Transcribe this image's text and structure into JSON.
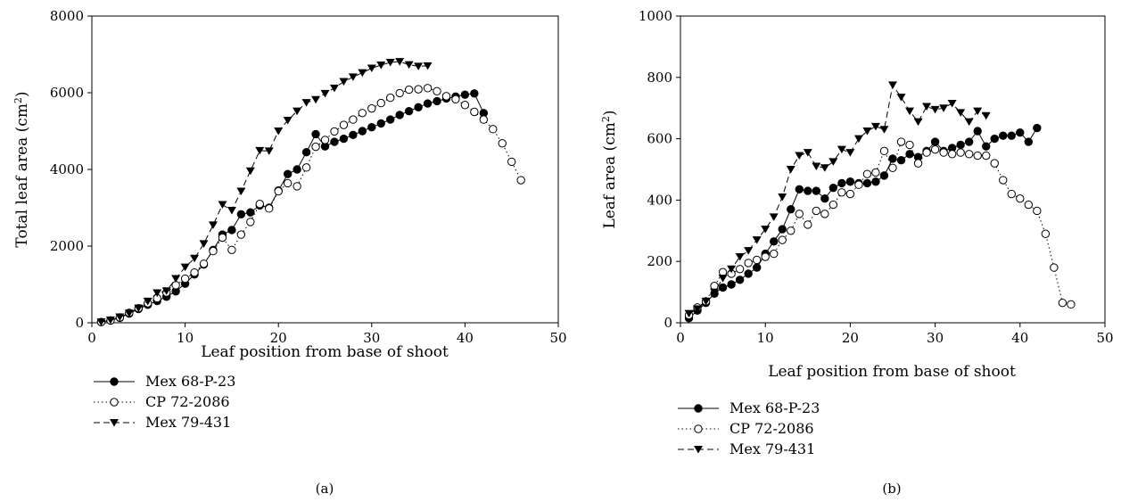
{
  "series_styles": [
    {
      "name": "Mex 68-P-23",
      "marker": "filled-circle",
      "line": "solid"
    },
    {
      "name": "CP 72-2086",
      "marker": "open-circle",
      "line": "dotted"
    },
    {
      "name": "Mex 79-431",
      "marker": "filled-triangle-down",
      "line": "dashed"
    }
  ],
  "colors": {
    "line": "#000000",
    "background": "#ffffff"
  },
  "chart_data": [
    {
      "type": "line",
      "panel_label": "(a)",
      "xlabel": "Leaf position from base of shoot",
      "ylabel": "Total leaf area (cm",
      "ylabel_sup": "2",
      "ylabel_end": ")",
      "xlim": [
        0,
        50
      ],
      "ylim": [
        0,
        8000
      ],
      "xticks": [
        0,
        10,
        20,
        30,
        40,
        50
      ],
      "yticks": [
        0,
        2000,
        4000,
        6000,
        8000
      ],
      "grid": false,
      "legend_position": "below-left",
      "series": [
        {
          "name": "Mex 68-P-23",
          "x": [
            1,
            2,
            3,
            4,
            5,
            6,
            7,
            8,
            9,
            10,
            11,
            12,
            13,
            14,
            15,
            16,
            17,
            18,
            19,
            20,
            21,
            22,
            23,
            24,
            25,
            26,
            27,
            28,
            29,
            30,
            31,
            32,
            33,
            34,
            35,
            36,
            37,
            38,
            39,
            40,
            41,
            42
          ],
          "y": [
            20,
            60,
            130,
            240,
            360,
            470,
            570,
            680,
            820,
            1020,
            1260,
            1520,
            1900,
            2300,
            2420,
            2830,
            2880,
            3060,
            3000,
            3450,
            3880,
            4000,
            4450,
            4920,
            4600,
            4720,
            4800,
            4900,
            5000,
            5100,
            5200,
            5300,
            5420,
            5520,
            5620,
            5720,
            5780,
            5850,
            5900,
            5950,
            5980,
            5470
          ]
        },
        {
          "name": "CP 72-2086",
          "x": [
            1,
            2,
            3,
            4,
            5,
            6,
            7,
            8,
            9,
            10,
            11,
            12,
            13,
            14,
            15,
            16,
            17,
            18,
            19,
            20,
            21,
            22,
            23,
            24,
            25,
            26,
            27,
            28,
            29,
            30,
            31,
            32,
            33,
            34,
            35,
            36,
            37,
            38,
            39,
            40,
            41,
            42,
            43,
            44,
            45,
            46
          ],
          "y": [
            20,
            60,
            140,
            260,
            380,
            510,
            640,
            790,
            980,
            1150,
            1310,
            1540,
            1870,
            2220,
            1900,
            2300,
            2630,
            3100,
            2980,
            3430,
            3640,
            3560,
            4050,
            4590,
            4770,
            4990,
            5160,
            5300,
            5470,
            5590,
            5730,
            5870,
            5990,
            6080,
            6090,
            6120,
            6040,
            5910,
            5830,
            5680,
            5500,
            5300,
            5050,
            4680,
            4200,
            3720
          ]
        },
        {
          "name": "Mex 79-431",
          "x": [
            1,
            2,
            3,
            4,
            5,
            6,
            7,
            8,
            9,
            10,
            11,
            12,
            13,
            14,
            15,
            16,
            17,
            18,
            19,
            20,
            21,
            22,
            23,
            24,
            25,
            26,
            27,
            28,
            29,
            30,
            31,
            32,
            33,
            34,
            35,
            36
          ],
          "y": [
            20,
            70,
            150,
            250,
            380,
            560,
            780,
            830,
            1150,
            1450,
            1680,
            2060,
            2550,
            3080,
            2930,
            3430,
            3960,
            4490,
            4480,
            5000,
            5280,
            5520,
            5740,
            5820,
            5980,
            6120,
            6290,
            6410,
            6520,
            6640,
            6720,
            6790,
            6810,
            6730,
            6690,
            6700
          ]
        }
      ]
    },
    {
      "type": "line",
      "panel_label": "(b)",
      "xlabel": "Leaf position from base of shoot",
      "ylabel": "Leaf area (cm",
      "ylabel_sup": "2",
      "ylabel_end": ")",
      "xlim": [
        0,
        50
      ],
      "ylim": [
        0,
        1000
      ],
      "xticks": [
        0,
        10,
        20,
        30,
        40,
        50
      ],
      "yticks": [
        0,
        200,
        400,
        600,
        800,
        1000
      ],
      "grid": false,
      "legend_position": "below-left",
      "series": [
        {
          "name": "Mex 68-P-23",
          "x": [
            1,
            2,
            3,
            4,
            5,
            6,
            7,
            8,
            9,
            10,
            11,
            12,
            13,
            14,
            15,
            16,
            17,
            18,
            19,
            20,
            21,
            22,
            23,
            24,
            25,
            26,
            27,
            28,
            29,
            30,
            31,
            32,
            33,
            34,
            35,
            36,
            37,
            38,
            39,
            40,
            41,
            42
          ],
          "y": [
            15,
            40,
            65,
            95,
            115,
            125,
            140,
            160,
            180,
            225,
            265,
            305,
            370,
            435,
            430,
            430,
            405,
            440,
            455,
            460,
            455,
            455,
            460,
            480,
            535,
            530,
            550,
            540,
            560,
            590,
            560,
            570,
            580,
            590,
            625,
            575,
            600,
            610,
            610,
            620,
            590,
            635
          ]
        },
        {
          "name": "CP 72-2086",
          "x": [
            1,
            2,
            3,
            4,
            5,
            6,
            7,
            8,
            9,
            10,
            11,
            12,
            13,
            14,
            15,
            16,
            17,
            18,
            19,
            20,
            21,
            22,
            23,
            24,
            25,
            26,
            27,
            28,
            29,
            30,
            31,
            32,
            33,
            34,
            35,
            36,
            37,
            38,
            39,
            40,
            41,
            42,
            43,
            44,
            45,
            46
          ],
          "y": [
            25,
            50,
            70,
            120,
            165,
            160,
            175,
            195,
            205,
            215,
            225,
            270,
            300,
            355,
            320,
            365,
            355,
            385,
            425,
            420,
            450,
            485,
            490,
            560,
            505,
            590,
            580,
            520,
            555,
            565,
            555,
            550,
            555,
            550,
            545,
            545,
            520,
            465,
            420,
            405,
            385,
            365,
            290,
            180,
            65,
            60
          ]
        },
        {
          "name": "Mex 79-431",
          "x": [
            1,
            2,
            3,
            4,
            5,
            6,
            7,
            8,
            9,
            10,
            11,
            12,
            13,
            14,
            15,
            16,
            17,
            18,
            19,
            20,
            21,
            22,
            23,
            24,
            25,
            26,
            27,
            28,
            29,
            30,
            31,
            32,
            33,
            34,
            35,
            36
          ],
          "y": [
            30,
            45,
            70,
            100,
            145,
            175,
            215,
            235,
            270,
            305,
            345,
            410,
            500,
            545,
            555,
            510,
            505,
            525,
            565,
            555,
            600,
            625,
            640,
            630,
            775,
            735,
            690,
            655,
            705,
            695,
            700,
            715,
            685,
            655,
            690,
            675
          ]
        }
      ]
    }
  ]
}
